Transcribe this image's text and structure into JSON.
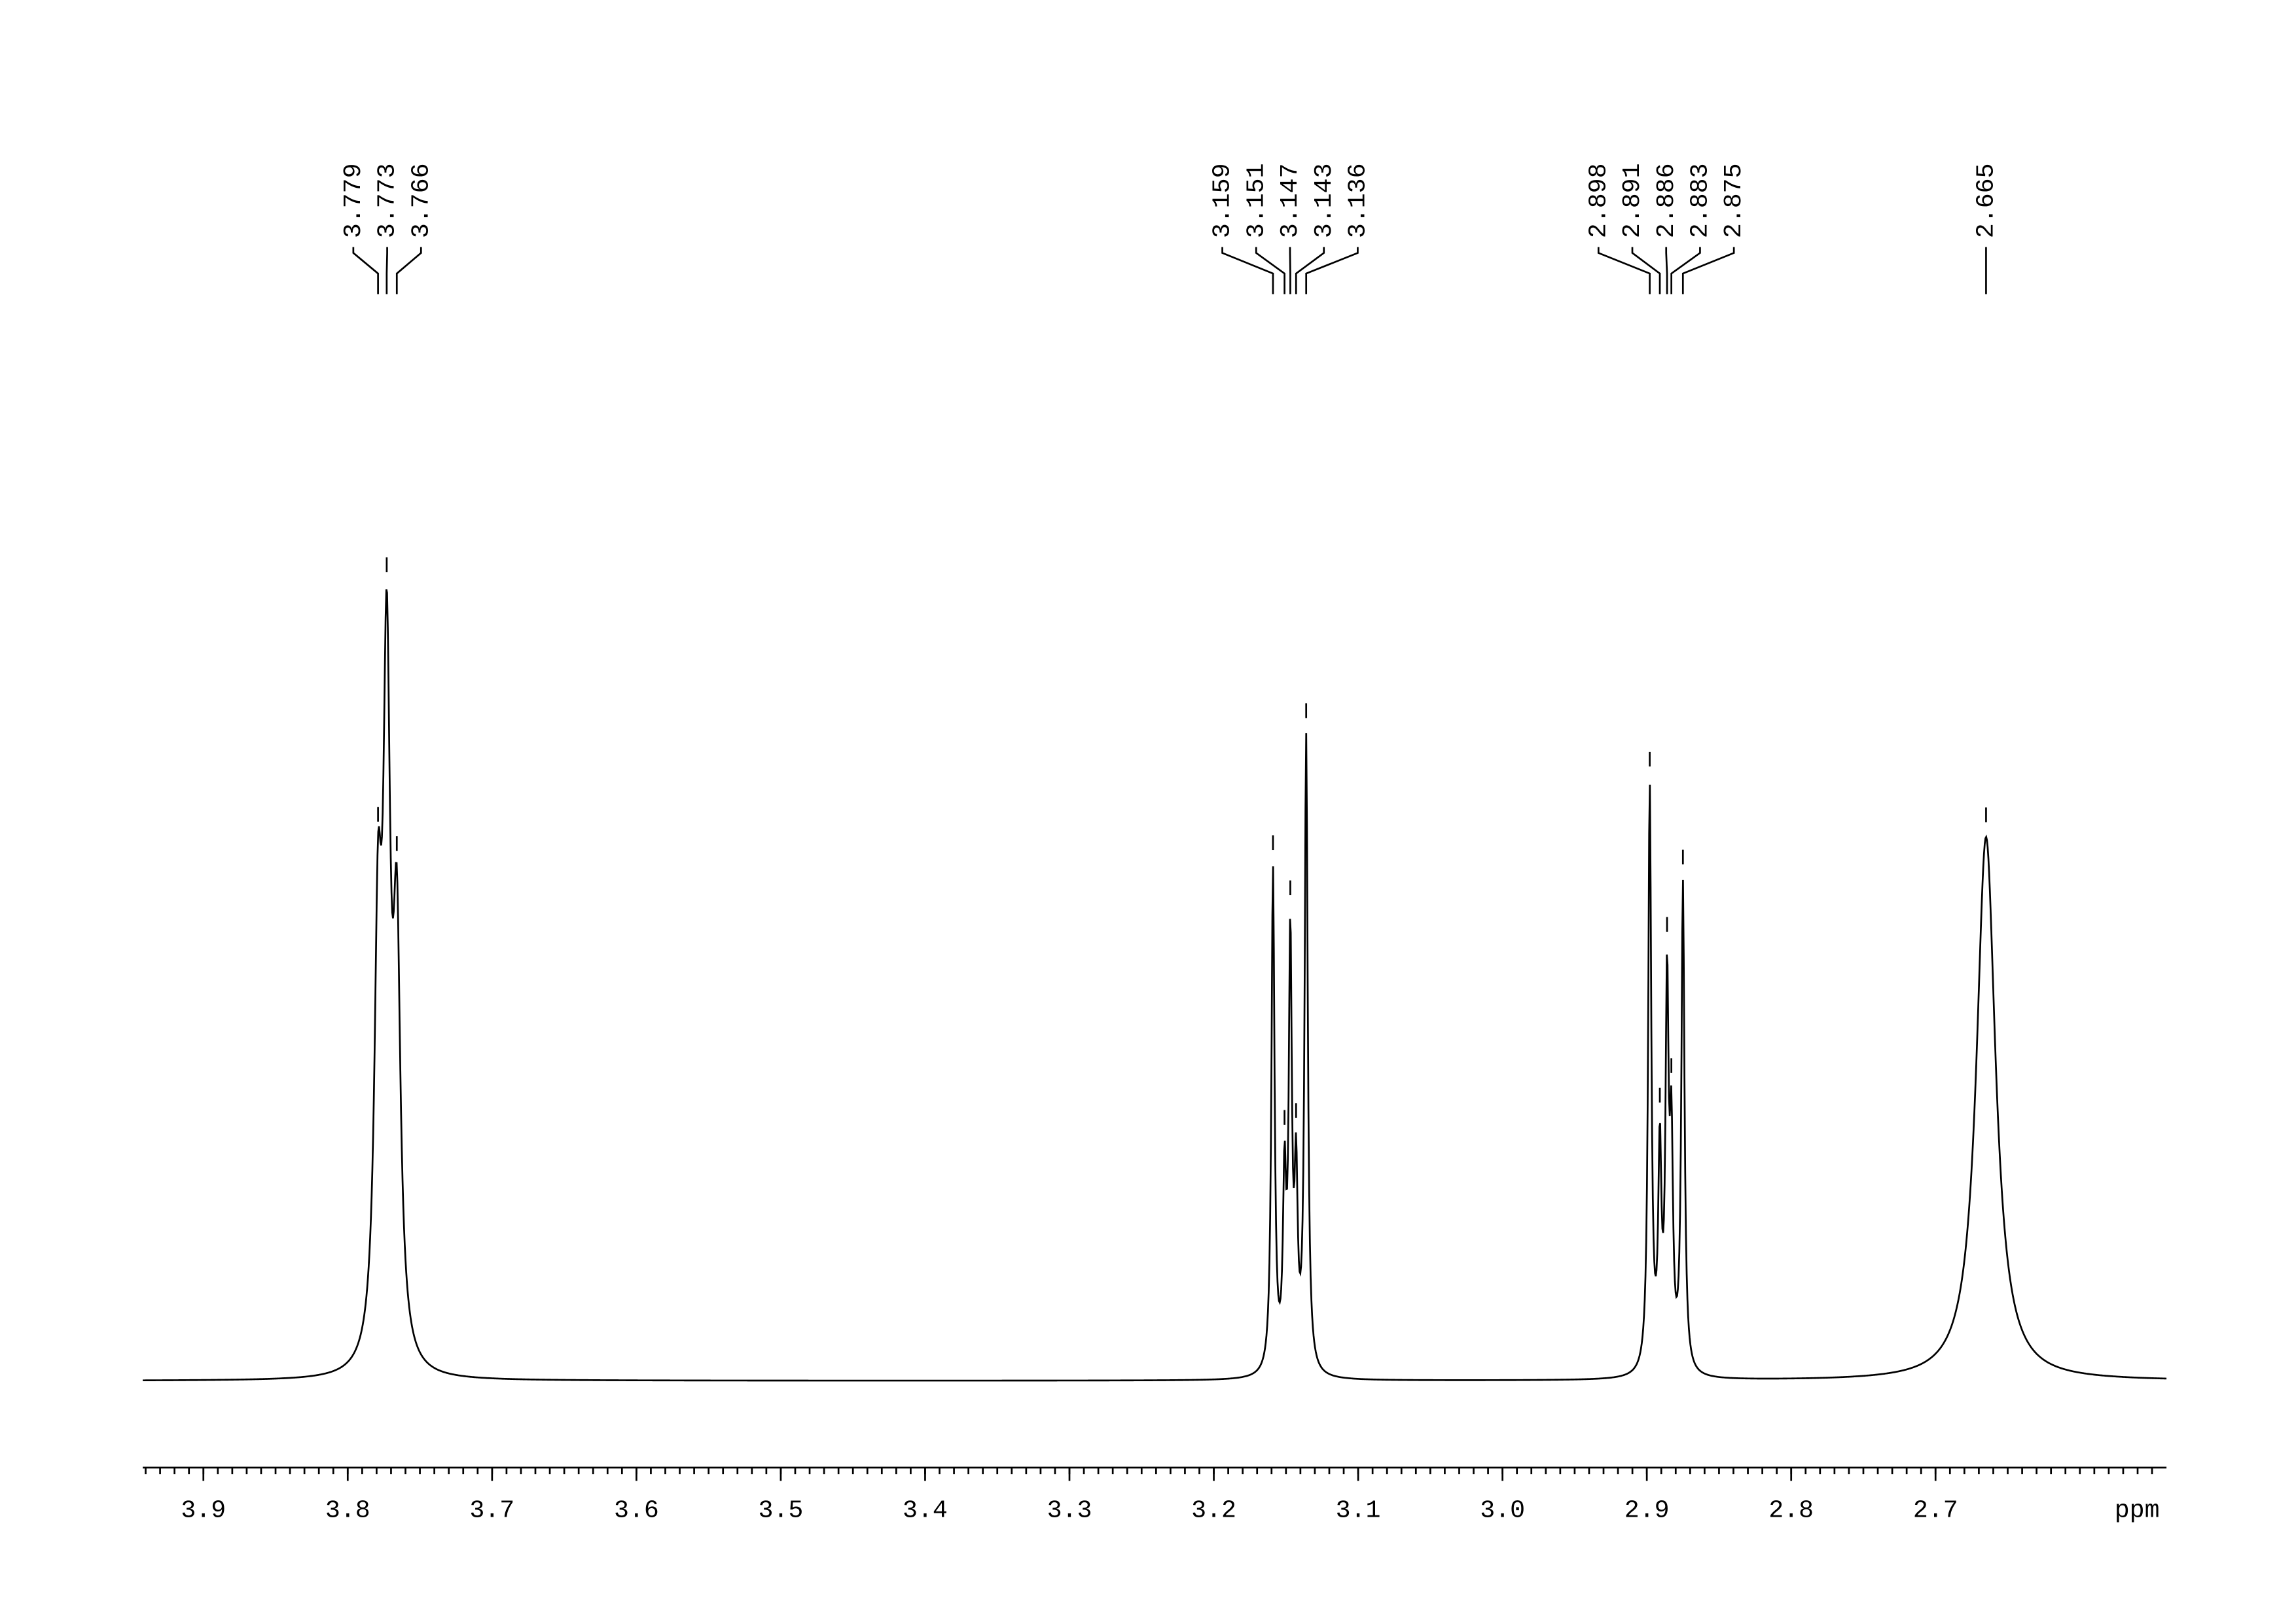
{
  "chart_data": {
    "type": "nmr",
    "xlabel": "ppm",
    "xlim": [
      3.942,
      2.54
    ],
    "xticks": [
      3.9,
      3.8,
      3.7,
      3.6,
      3.5,
      3.4,
      3.3,
      3.2,
      3.1,
      {
        "value": 3.0,
        "label": "3.0"
      },
      2.9,
      2.8,
      2.7
    ],
    "color": "#000000",
    "peaks": [
      {
        "ppm": 3.779,
        "height": 48.5,
        "width": 0.003
      },
      {
        "ppm": 3.773,
        "height": 80.6,
        "width": 0.003
      },
      {
        "ppm": 3.766,
        "height": 48.5,
        "width": 0.003
      },
      {
        "ppm": 3.159,
        "height": 62,
        "width": 0.0013
      },
      {
        "ppm": 3.151,
        "height": 22,
        "width": 0.0013
      },
      {
        "ppm": 3.147,
        "height": 52,
        "width": 0.0013
      },
      {
        "ppm": 3.143,
        "height": 22,
        "width": 0.0013
      },
      {
        "ppm": 3.136,
        "height": 78,
        "width": 0.0013
      },
      {
        "ppm": 2.898,
        "height": 72,
        "width": 0.0013
      },
      {
        "ppm": 2.891,
        "height": 26,
        "width": 0.0013
      },
      {
        "ppm": 2.886,
        "height": 46,
        "width": 0.0013
      },
      {
        "ppm": 2.883,
        "height": 26,
        "width": 0.0013
      },
      {
        "ppm": 2.875,
        "height": 60,
        "width": 0.0013
      },
      {
        "ppm": 2.665,
        "height": 67,
        "width": 0.008
      }
    ]
  }
}
